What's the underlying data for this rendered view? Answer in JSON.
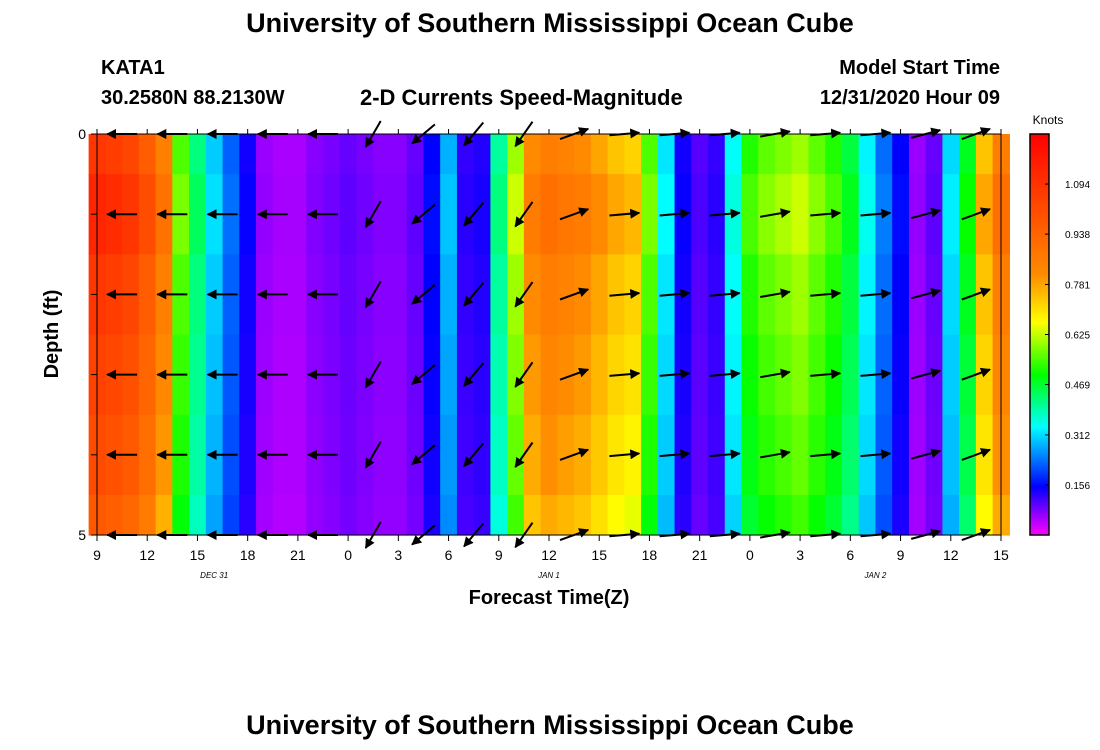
{
  "header": {
    "title": "University of Southern Mississippi Ocean Cube",
    "station": "KATA1",
    "coords": "30.2580N 88.2130W",
    "subtitle": "2-D Currents Speed-Magnitude",
    "model_label": "Model Start Time",
    "model_time": "12/31/2020 Hour 09"
  },
  "footer": {
    "title": "University of Southern Mississippi Ocean Cube"
  },
  "chart_data": {
    "type": "heatmap",
    "title": "2-D Currents Speed-Magnitude",
    "xlabel": "Forecast Time(Z)",
    "ylabel": "Depth (ft)",
    "x_hours": [
      0,
      1,
      2,
      3,
      4,
      5,
      6,
      7,
      8,
      9,
      10,
      11,
      12,
      13,
      14,
      15,
      16,
      17,
      18,
      19,
      20,
      21,
      22,
      23,
      24,
      25,
      26,
      27,
      28,
      29,
      30,
      31,
      32,
      33,
      34,
      35,
      36,
      37,
      38,
      39,
      40,
      41,
      42,
      43,
      44,
      45,
      46,
      47,
      48,
      49,
      50,
      51,
      52,
      53,
      54
    ],
    "x_tick_labels": [
      "9",
      "12",
      "15",
      "18",
      "21",
      "0",
      "3",
      "6",
      "9",
      "12",
      "15",
      "18",
      "21",
      "0",
      "3",
      "6",
      "9",
      "12",
      "15"
    ],
    "date_labels": [
      {
        "hour": 7,
        "text": "DEC 31"
      },
      {
        "hour": 27,
        "text": "JAN 1"
      },
      {
        "hour": 46.5,
        "text": "JAN 2"
      }
    ],
    "y_tick_labels": [
      "0",
      "5"
    ],
    "ylim": [
      0,
      5
    ],
    "depth_layers": 5,
    "speed_knots_by_hour": [
      1.08,
      1.06,
      1.03,
      0.96,
      0.85,
      0.55,
      0.42,
      0.3,
      0.22,
      0.14,
      0.06,
      0.05,
      0.05,
      0.07,
      0.08,
      0.09,
      0.08,
      0.07,
      0.07,
      0.09,
      0.15,
      0.28,
      0.12,
      0.13,
      0.4,
      0.6,
      0.82,
      0.86,
      0.84,
      0.82,
      0.78,
      0.74,
      0.72,
      0.55,
      0.32,
      0.14,
      0.1,
      0.12,
      0.34,
      0.52,
      0.56,
      0.58,
      0.6,
      0.56,
      0.52,
      0.46,
      0.33,
      0.23,
      0.15,
      0.06,
      0.09,
      0.31,
      0.48,
      0.74,
      0.86
    ],
    "speed_depth_factor": [
      1.0,
      1.05,
      1.0,
      0.97,
      0.94,
      0.9
    ],
    "colorbar": {
      "unit": "Knots",
      "min": 0,
      "max": 1.25,
      "tick_values": [
        0.156,
        0.312,
        0.469,
        0.625,
        0.781,
        0.938,
        1.094
      ],
      "tick_labels": [
        "0.156",
        "0.312",
        "0.469",
        "0.625",
        "0.781",
        "0.938",
        "1.094"
      ]
    },
    "vectors": {
      "hours": [
        1.5,
        4.5,
        7.5,
        10.5,
        13.5,
        16.5,
        19.5,
        22.5,
        25.5,
        28.5,
        31.5,
        34.5,
        37.5,
        40.5,
        43.5,
        46.5,
        49.5,
        52.5
      ],
      "depth_rows": [
        0,
        1,
        2,
        3,
        4,
        5
      ],
      "direction_deg": [
        180,
        180,
        180,
        180,
        180,
        240,
        220,
        230,
        235,
        20,
        5,
        5,
        5,
        10,
        5,
        5,
        15,
        20
      ]
    }
  }
}
